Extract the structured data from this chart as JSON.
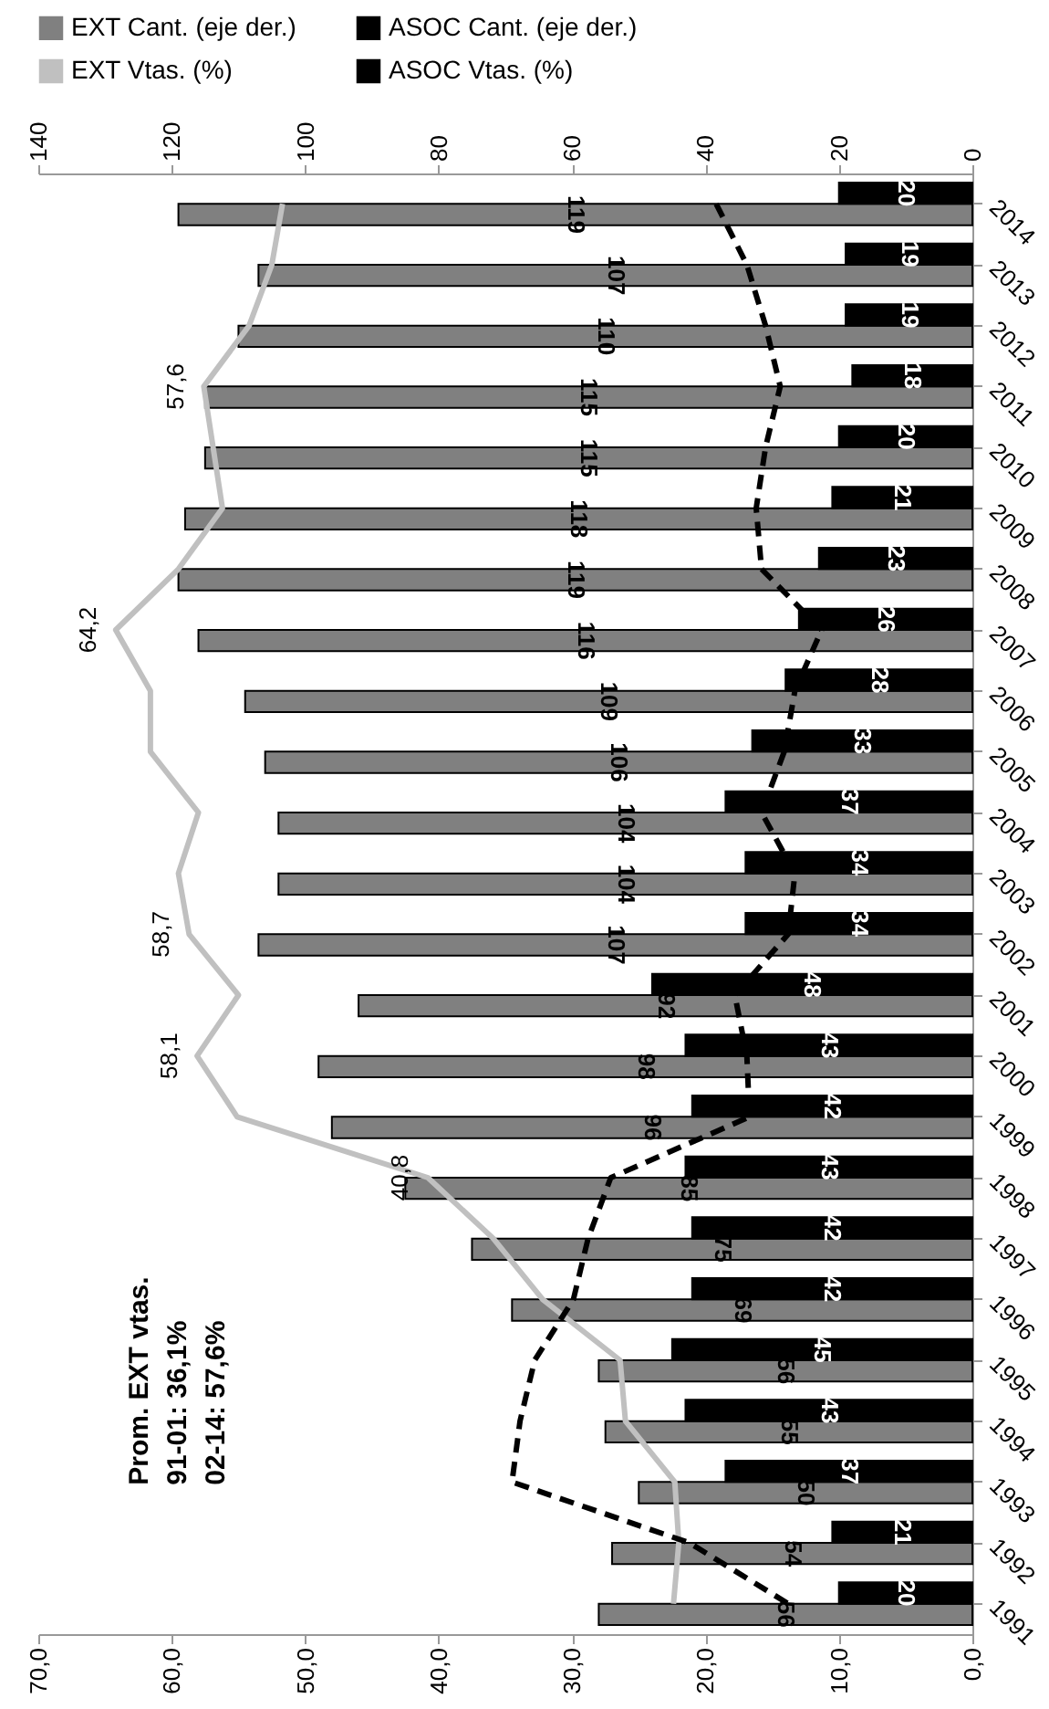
{
  "chart_data": {
    "type": "bar",
    "orientation": "horizontal",
    "categories": [
      "2014",
      "2013",
      "2012",
      "2011",
      "2010",
      "2009",
      "2008",
      "2007",
      "2006",
      "2005",
      "2004",
      "2003",
      "2002",
      "2001",
      "2000",
      "1999",
      "1998",
      "1997",
      "1996",
      "1995",
      "1994",
      "1993",
      "1992",
      "1991"
    ],
    "series": [
      {
        "name": "EXT Cant. (eje der.)",
        "color": "#808080",
        "axis": "x2",
        "values": [
          119,
          107,
          110,
          115,
          115,
          118,
          119,
          116,
          109,
          106,
          104,
          104,
          107,
          92,
          98,
          96,
          85,
          75,
          69,
          56,
          55,
          50,
          54,
          56
        ],
        "value_labels": [
          "119",
          "107",
          "110",
          "115",
          "115",
          "118",
          "119",
          "116",
          "109",
          "106",
          "104",
          "104",
          "107",
          "92",
          "98",
          "96",
          "85",
          "75",
          "69",
          "56",
          "55",
          "50",
          "54",
          "56"
        ]
      },
      {
        "name": "ASOC Cant. (eje der.)",
        "color": "#000000",
        "axis": "x2",
        "values": [
          20,
          19,
          19,
          18,
          20,
          21,
          23,
          26,
          28,
          33,
          37,
          34,
          34,
          48,
          43,
          42,
          43,
          42,
          42,
          45,
          43,
          37,
          21,
          20
        ],
        "value_labels": [
          "20",
          "19",
          "19",
          "18",
          "20",
          "21",
          "23",
          "26",
          "28",
          "33",
          "37",
          "34",
          "34",
          "48",
          "43",
          "42",
          "43",
          "42",
          "42",
          "45",
          "43",
          "37",
          "21",
          "20"
        ]
      },
      {
        "name": "EXT Vtas. (%)",
        "type": "line",
        "color": "#c0c0c0",
        "values": [
          51.7,
          52.5,
          54.2,
          57.6,
          56.9,
          56.2,
          59.5,
          64.2,
          61.6,
          61.6,
          58.0,
          59.5,
          58.7,
          55.0,
          58.1,
          55.1,
          40.8,
          35.9,
          32.2,
          26.4,
          26.0,
          22.3,
          22.0,
          22.4
        ],
        "value_labels": [
          null,
          null,
          null,
          "57,6",
          null,
          null,
          null,
          "64,2",
          null,
          null,
          null,
          null,
          "58,7",
          null,
          "58,1",
          null,
          "40,8",
          null,
          null,
          null,
          null,
          null,
          null,
          null
        ]
      },
      {
        "name": "ASOC Vtas. (%)",
        "type": "line",
        "color": "#000000",
        "line_style": "dashed",
        "values": [
          19.2,
          16.9,
          15.5,
          14.4,
          15.5,
          16.2,
          15.8,
          11.3,
          13.3,
          14.1,
          15.8,
          13.3,
          13.8,
          17.8,
          16.9,
          16.7,
          27.1,
          28.8,
          29.9,
          32.8,
          33.9,
          34.5,
          21.2,
          13.8
        ]
      }
    ],
    "xlim": [
      70,
      0
    ],
    "xticks": [
      {
        "value": 70,
        "label": "70,0"
      },
      {
        "value": 60,
        "label": "60,0"
      },
      {
        "value": 50,
        "label": "50,0"
      },
      {
        "value": 40,
        "label": "40,0"
      },
      {
        "value": 30,
        "label": "30,0"
      },
      {
        "value": 20,
        "label": "20,0"
      },
      {
        "value": 10,
        "label": "10,0"
      },
      {
        "value": 0,
        "label": "0,0"
      }
    ],
    "x2lim": [
      140,
      0
    ],
    "x2ticks": [
      140,
      120,
      100,
      80,
      60,
      40,
      20,
      0
    ],
    "legend": "top",
    "annotations": [
      "Prom. EXT vtas.",
      "91-01: 36,1%",
      "02-14: 57,6%"
    ]
  }
}
